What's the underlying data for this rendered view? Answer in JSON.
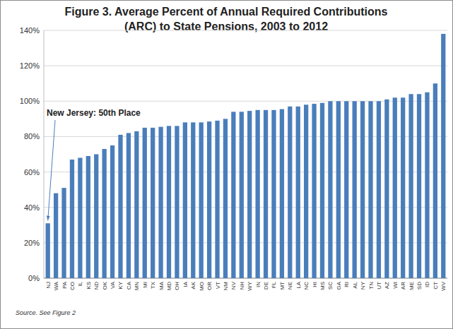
{
  "chart_data": {
    "type": "bar",
    "title": "Figure 3. Average Percent of Annual Required Contributions (ARC) to State Pensions, 2003 to 2012",
    "categories": [
      "NJ",
      "WA",
      "PA",
      "CO",
      "IL",
      "KS",
      "ND",
      "OK",
      "VA",
      "KY",
      "CA",
      "MN",
      "MI",
      "TX",
      "MA",
      "MD",
      "OH",
      "IA",
      "AK",
      "MO",
      "OR",
      "VT",
      "NM",
      "NV",
      "NH",
      "WY",
      "IN",
      "DE",
      "FL",
      "MT",
      "NE",
      "LA",
      "NC",
      "HI",
      "MS",
      "SC",
      "GA",
      "RI",
      "AL",
      "NY",
      "TN",
      "UT",
      "AZ",
      "WI",
      "AR",
      "ME",
      "SD",
      "ID",
      "CT",
      "WV"
    ],
    "values": [
      31,
      48,
      51,
      67,
      68,
      69,
      70,
      73,
      75,
      81,
      82,
      83,
      85,
      85,
      85.5,
      86,
      86,
      88,
      88,
      88,
      88.5,
      89,
      90,
      94,
      94,
      94.5,
      95,
      95,
      95,
      95.5,
      97,
      97,
      98,
      98.5,
      99,
      100,
      100,
      100,
      100,
      100,
      100,
      100,
      101,
      102,
      102,
      104,
      104,
      105,
      110,
      138
    ],
    "color": "#4a7ebb",
    "ylim": [
      0,
      140
    ],
    "yticks": [
      {
        "value": 0,
        "label": "0%"
      },
      {
        "value": 20,
        "label": "20%"
      },
      {
        "value": 40,
        "label": "40%"
      },
      {
        "value": 60,
        "label": "60%"
      },
      {
        "value": 80,
        "label": "80%"
      },
      {
        "value": 100,
        "label": "100%"
      },
      {
        "value": 120,
        "label": "120%"
      },
      {
        "value": 140,
        "label": "140%"
      }
    ],
    "grid": true,
    "annotations": [
      "New Jersey: 50th Place"
    ],
    "source": "Source. See Figure 2"
  }
}
